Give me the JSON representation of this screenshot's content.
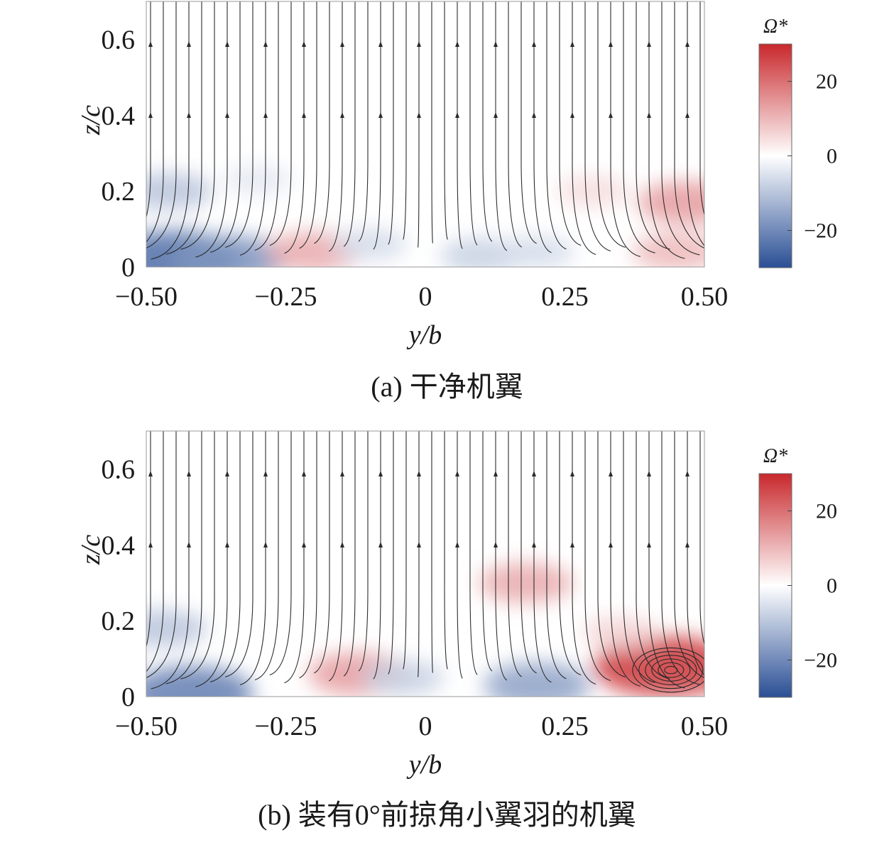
{
  "figure": {
    "captions": [
      "(a) 干净机翼",
      "(b) 装有0°前掠角小翼羽的机翼"
    ]
  },
  "chart_data": [
    {
      "type": "heatmap",
      "subtype": "vorticity contour with streamlines",
      "caption": "(a) 干净机翼",
      "xlabel": "y/b",
      "ylabel": "z/c",
      "xlim": [
        -0.5,
        0.5
      ],
      "ylim": [
        0,
        0.7
      ],
      "xticks": [
        -0.5,
        -0.25,
        0,
        0.25,
        0.5
      ],
      "xtick_labels": [
        "−0.50",
        "−0.25",
        "0",
        "0.25",
        "0.50"
      ],
      "yticks": [
        0,
        0.2,
        0.4,
        0.6
      ],
      "ytick_labels": [
        "0",
        "0.2",
        "0.4",
        "0.6"
      ],
      "colorbar": {
        "title": "Ω*",
        "range": [
          -30,
          30
        ],
        "ticks": [
          -20,
          0,
          20
        ],
        "tick_labels": [
          "−20",
          "0",
          "20"
        ],
        "colors": [
          "#2a4f95",
          "#ffffff",
          "#c8282c"
        ]
      },
      "vorticity_regions": [
        {
          "y": -0.45,
          "z": 0.02,
          "omega": -25
        },
        {
          "y": -0.35,
          "z": 0.02,
          "omega": -18
        },
        {
          "y": -0.46,
          "z": 0.2,
          "omega": -10
        },
        {
          "y": -0.3,
          "z": 0.23,
          "omega": -4
        },
        {
          "y": -0.2,
          "z": 0.04,
          "omega": 12
        },
        {
          "y": -0.1,
          "z": 0.06,
          "omega": -6
        },
        {
          "y": 0.1,
          "z": 0.03,
          "omega": -8
        },
        {
          "y": 0.2,
          "z": 0.04,
          "omega": -6
        },
        {
          "y": 0.3,
          "z": 0.2,
          "omega": 5
        },
        {
          "y": 0.47,
          "z": 0.17,
          "omega": 14
        },
        {
          "y": 0.45,
          "z": 0.04,
          "omega": 10
        }
      ],
      "streamline_pattern": "downwash toward symmetry plane y/b=0, flow turns upward and converges near center"
    },
    {
      "type": "heatmap",
      "subtype": "vorticity contour with streamlines",
      "caption": "(b) 装有0°前掠角小翼羽的机翼",
      "xlabel": "y/b",
      "ylabel": "z/c",
      "xlim": [
        -0.5,
        0.5
      ],
      "ylim": [
        0,
        0.7
      ],
      "xticks": [
        -0.5,
        -0.25,
        0,
        0.25,
        0.5
      ],
      "xtick_labels": [
        "−0.50",
        "−0.25",
        "0",
        "0.25",
        "0.50"
      ],
      "yticks": [
        0,
        0.2,
        0.4,
        0.6
      ],
      "ytick_labels": [
        "0",
        "0.2",
        "0.4",
        "0.6"
      ],
      "colorbar": {
        "title": "Ω*",
        "range": [
          -30,
          30
        ],
        "ticks": [
          -20,
          0,
          20
        ],
        "tick_labels": [
          "−20",
          "0",
          "20"
        ],
        "colors": [
          "#2a4f95",
          "#ffffff",
          "#c8282c"
        ]
      },
      "vorticity_regions": [
        {
          "y": -0.42,
          "z": 0.01,
          "omega": -22
        },
        {
          "y": -0.47,
          "z": 0.18,
          "omega": -10
        },
        {
          "y": -0.12,
          "z": 0.06,
          "omega": 14
        },
        {
          "y": -0.04,
          "z": 0.05,
          "omega": -8
        },
        {
          "y": 0.18,
          "z": 0.3,
          "omega": 12
        },
        {
          "y": 0.2,
          "z": 0.03,
          "omega": -16
        },
        {
          "y": 0.43,
          "z": 0.08,
          "omega": 28
        },
        {
          "y": 0.35,
          "z": 0.17,
          "omega": 6
        }
      ],
      "vortex_core": {
        "y": 0.44,
        "z": 0.07
      },
      "streamline_pattern": "flow turns upward near center, strong clockwise vortex near y/b=0.44, z/c=0.07"
    }
  ]
}
